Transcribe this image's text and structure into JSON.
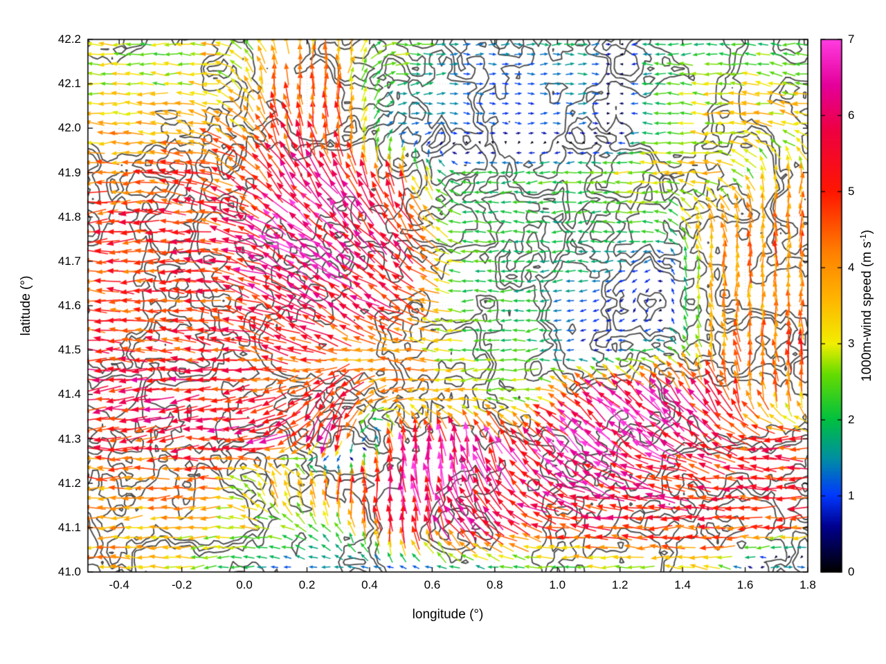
{
  "figure": {
    "colorbar_label_prefix": "1000m-wind speed (m s",
    "colorbar_label_sup": "-1",
    "colorbar_label_suffix": ")"
  },
  "chart_data": {
    "type": "quiver",
    "title": "",
    "xlabel": "longitude (°)",
    "ylabel": "latitude (°)",
    "xlim": [
      -0.5,
      1.8
    ],
    "ylim": [
      41.0,
      42.2
    ],
    "grid": "dotted",
    "xticks": [
      -0.4,
      -0.2,
      0.0,
      0.2,
      0.4,
      0.6,
      0.8,
      1.0,
      1.2,
      1.4,
      1.6,
      1.8
    ],
    "xtick_labels": [
      "-0.4",
      "-0.2",
      "0.0",
      "0.2",
      "0.4",
      "0.6",
      "0.8",
      "1.0",
      "1.2",
      "1.4",
      "1.6",
      "1.8"
    ],
    "yticks": [
      41.0,
      41.1,
      41.2,
      41.3,
      41.4,
      41.5,
      41.6,
      41.7,
      41.8,
      41.9,
      42.0,
      42.1,
      42.2
    ],
    "ytick_labels": [
      "41.0",
      "41.1",
      "41.2",
      "41.3",
      "41.4",
      "41.5",
      "41.6",
      "41.7",
      "41.8",
      "41.9",
      "42.0",
      "42.1",
      "42.2"
    ],
    "colorbar": {
      "label": "1000m-wind speed (m s^-1)",
      "min": 0,
      "max": 7,
      "ticks": [
        0,
        1,
        2,
        3,
        4,
        5,
        6,
        7
      ],
      "tick_labels": [
        "0",
        "1",
        "2",
        "3",
        "4",
        "5",
        "6",
        "7"
      ],
      "colormap_stops": [
        [
          0.0,
          "#000000"
        ],
        [
          0.6,
          "#00008f"
        ],
        [
          1.0,
          "#0038ff"
        ],
        [
          1.5,
          "#0090a0"
        ],
        [
          2.0,
          "#00c040"
        ],
        [
          2.6,
          "#66dc00"
        ],
        [
          3.0,
          "#f2ee00"
        ],
        [
          3.6,
          "#ffb400"
        ],
        [
          4.2,
          "#ff8000"
        ],
        [
          5.0,
          "#ff1600"
        ],
        [
          5.8,
          "#ee0040"
        ],
        [
          6.4,
          "#e4009a"
        ],
        [
          7.0,
          "#ff3ce0"
        ]
      ]
    },
    "contour_lines": {
      "color": "#3c3c3c",
      "description": "unlabeled dark-gray terrain contour lines overlaid on the wind field"
    },
    "wind_grid": {
      "order": "rows from north (lat 42.2) to south (lat 41.0); each cell is [direction_deg_ccw_from_east, speed_ms]",
      "lons": [
        -0.5,
        -0.3,
        -0.1,
        0.1,
        0.3,
        0.5,
        0.7,
        0.9,
        1.1,
        1.3,
        1.5,
        1.7
      ],
      "lats": [
        42.2,
        42.1,
        42.0,
        41.9,
        41.8,
        41.7,
        41.6,
        41.5,
        41.4,
        41.3,
        41.2,
        41.1,
        41.0
      ],
      "vectors_dir_speed": [
        [
          [
            180,
            3.2
          ],
          [
            180,
            2.5
          ],
          [
            180,
            3.5
          ],
          [
            100,
            3.8
          ],
          [
            90,
            4.0
          ],
          [
            0,
            3.0
          ],
          [
            0,
            1.2
          ],
          [
            0,
            1.5
          ],
          [
            0,
            2.0
          ],
          [
            180,
            2.0
          ],
          [
            180,
            1.8
          ],
          [
            180,
            2.2
          ]
        ],
        [
          [
            180,
            3.0
          ],
          [
            180,
            2.8
          ],
          [
            170,
            3.2
          ],
          [
            95,
            4.5
          ],
          [
            90,
            4.2
          ],
          [
            10,
            2.0
          ],
          [
            0,
            1.2
          ],
          [
            0,
            1.0
          ],
          [
            0,
            1.5
          ],
          [
            180,
            2.0
          ],
          [
            180,
            3.0
          ],
          [
            170,
            3.0
          ]
        ],
        [
          [
            180,
            3.5
          ],
          [
            175,
            3.8
          ],
          [
            165,
            4.0
          ],
          [
            110,
            5.0
          ],
          [
            95,
            4.8
          ],
          [
            5,
            1.5
          ],
          [
            350,
            1.2
          ],
          [
            0,
            1.0
          ],
          [
            0,
            1.2
          ],
          [
            180,
            2.0
          ],
          [
            175,
            3.2
          ],
          [
            170,
            3.5
          ]
        ],
        [
          [
            185,
            4.0
          ],
          [
            180,
            4.5
          ],
          [
            160,
            4.8
          ],
          [
            130,
            5.5
          ],
          [
            120,
            5.8
          ],
          [
            100,
            4.5
          ],
          [
            180,
            2.0
          ],
          [
            185,
            2.2
          ],
          [
            180,
            2.5
          ],
          [
            180,
            3.0
          ],
          [
            175,
            3.5
          ],
          [
            90,
            3.8
          ]
        ],
        [
          [
            185,
            4.8
          ],
          [
            180,
            5.0
          ],
          [
            170,
            5.0
          ],
          [
            140,
            6.3
          ],
          [
            135,
            6.0
          ],
          [
            120,
            5.2
          ],
          [
            180,
            2.2
          ],
          [
            180,
            2.0
          ],
          [
            185,
            2.0
          ],
          [
            180,
            2.5
          ],
          [
            100,
            4.0
          ],
          [
            90,
            4.2
          ]
        ],
        [
          [
            180,
            5.0
          ],
          [
            185,
            5.0
          ],
          [
            175,
            5.2
          ],
          [
            150,
            6.2
          ],
          [
            145,
            6.0
          ],
          [
            140,
            5.5
          ],
          [
            180,
            2.2
          ],
          [
            180,
            2.0
          ],
          [
            180,
            1.8
          ],
          [
            200,
            1.2
          ],
          [
            90,
            4.0
          ],
          [
            85,
            4.2
          ]
        ],
        [
          [
            175,
            4.5
          ],
          [
            180,
            4.8
          ],
          [
            170,
            5.0
          ],
          [
            155,
            5.5
          ],
          [
            150,
            5.8
          ],
          [
            155,
            5.0
          ],
          [
            180,
            2.2
          ],
          [
            185,
            2.0
          ],
          [
            190,
            1.0
          ],
          [
            270,
            0.8
          ],
          [
            95,
            3.8
          ],
          [
            90,
            4.0
          ]
        ],
        [
          [
            180,
            5.2
          ],
          [
            175,
            5.0
          ],
          [
            170,
            5.0
          ],
          [
            160,
            5.2
          ],
          [
            165,
            4.5
          ],
          [
            170,
            4.0
          ],
          [
            180,
            2.5
          ],
          [
            185,
            2.2
          ],
          [
            200,
            0.6
          ],
          [
            180,
            2.0
          ],
          [
            100,
            4.0
          ],
          [
            95,
            4.5
          ]
        ],
        [
          [
            185,
            5.5
          ],
          [
            190,
            5.8
          ],
          [
            185,
            5.5
          ],
          [
            200,
            5.0
          ],
          [
            230,
            5.8
          ],
          [
            190,
            4.2
          ],
          [
            185,
            3.5
          ],
          [
            180,
            2.5
          ],
          [
            140,
            6.3
          ],
          [
            135,
            6.5
          ],
          [
            120,
            5.2
          ],
          [
            95,
            4.2
          ]
        ],
        [
          [
            180,
            5.0
          ],
          [
            185,
            5.2
          ],
          [
            180,
            5.5
          ],
          [
            200,
            6.0
          ],
          [
            260,
            6.2
          ],
          [
            90,
            6.3
          ],
          [
            100,
            6.4
          ],
          [
            130,
            6.2
          ],
          [
            140,
            6.5
          ],
          [
            145,
            6.5
          ],
          [
            150,
            5.5
          ],
          [
            180,
            5.0
          ]
        ],
        [
          [
            180,
            4.2
          ],
          [
            180,
            4.0
          ],
          [
            185,
            4.0
          ],
          [
            100,
            4.0
          ],
          [
            90,
            5.0
          ],
          [
            95,
            6.5
          ],
          [
            105,
            6.3
          ],
          [
            140,
            6.0
          ],
          [
            160,
            6.0
          ],
          [
            170,
            5.5
          ],
          [
            175,
            5.2
          ],
          [
            180,
            5.0
          ]
        ],
        [
          [
            180,
            4.0
          ],
          [
            185,
            3.8
          ],
          [
            180,
            3.2
          ],
          [
            170,
            3.0
          ],
          [
            120,
            2.2
          ],
          [
            95,
            5.5
          ],
          [
            130,
            5.8
          ],
          [
            160,
            5.2
          ],
          [
            175,
            5.0
          ],
          [
            180,
            5.2
          ],
          [
            180,
            5.0
          ],
          [
            185,
            4.8
          ]
        ],
        [
          [
            180,
            4.0
          ],
          [
            180,
            3.5
          ],
          [
            190,
            2.2
          ],
          [
            180,
            1.0
          ],
          [
            185,
            1.5
          ],
          [
            200,
            1.2
          ],
          [
            180,
            1.5
          ],
          [
            185,
            2.0
          ],
          [
            180,
            2.5
          ],
          [
            175,
            3.0
          ],
          [
            170,
            3.0
          ],
          [
            0,
            2.2
          ]
        ]
      ]
    }
  }
}
